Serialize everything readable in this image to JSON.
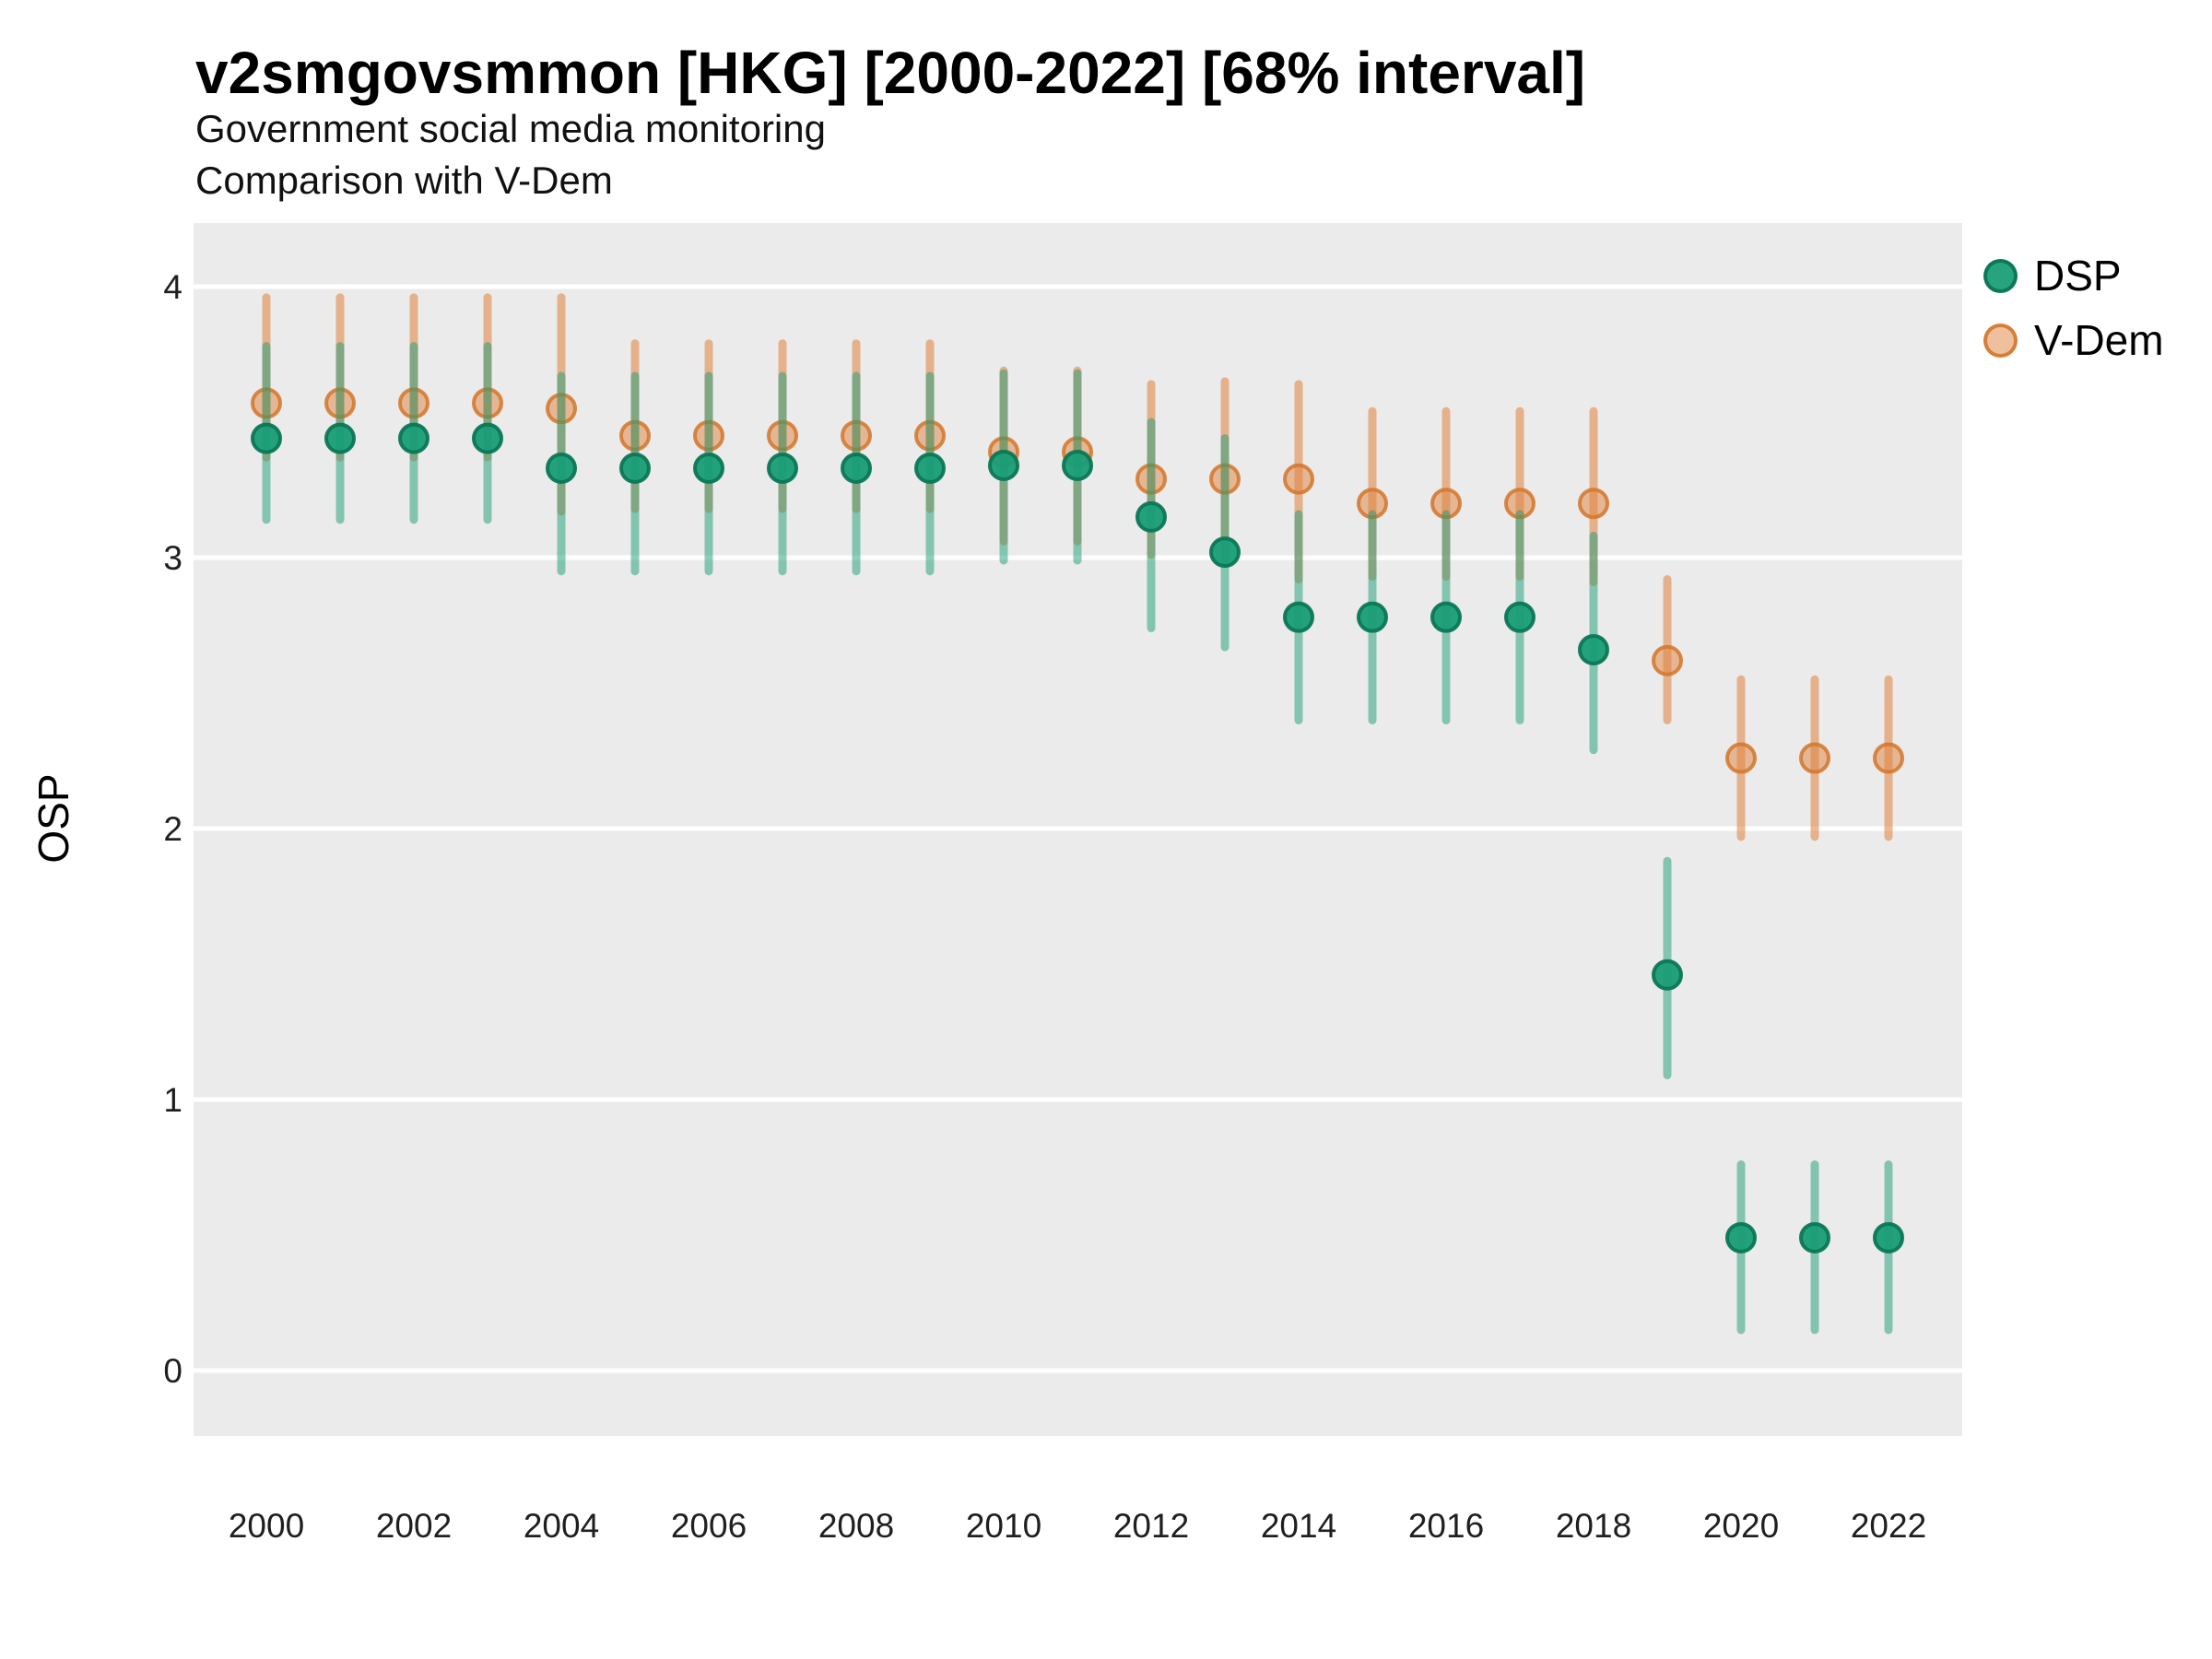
{
  "header": {
    "title": "v2smgovsmmon [HKG] [2000-2022] [68% interval]",
    "subtitle_line1": "Government social media monitoring",
    "subtitle_line2": "Comparison with V-Dem"
  },
  "legend": {
    "items": [
      {
        "label": "DSP",
        "color": "#1b9e77"
      },
      {
        "label": "V-Dem",
        "color": "#e0823c"
      }
    ]
  },
  "axes": {
    "y_label": "OSP",
    "y_tick_labels": [
      "0",
      "1",
      "2",
      "3",
      "4"
    ],
    "y_tick_values": [
      0,
      1,
      2,
      3,
      4
    ],
    "x_tick_labels": [
      "2000",
      "2002",
      "2004",
      "2006",
      "2008",
      "2010",
      "2012",
      "2014",
      "2016",
      "2018",
      "2020",
      "2022"
    ],
    "x_tick_values": [
      2000,
      2002,
      2004,
      2006,
      2008,
      2010,
      2012,
      2014,
      2016,
      2018,
      2020,
      2022
    ]
  },
  "chart_data": {
    "type": "pointrange",
    "title": "v2smgovsmmon [HKG] [2000-2022] [68% interval]",
    "subtitle": "Government social media monitoring\nComparison with V-Dem",
    "xlabel": "",
    "ylabel": "OSP",
    "interval": "68%",
    "ylim": [
      -0.25,
      4.25
    ],
    "grid": "white major gridlines at integers on grey panel",
    "legend_position": "right-top",
    "panel_color": "#ebebeb",
    "years": [
      2000,
      2001,
      2002,
      2003,
      2004,
      2005,
      2006,
      2007,
      2008,
      2009,
      2010,
      2011,
      2012,
      2013,
      2014,
      2015,
      2016,
      2017,
      2018,
      2019,
      2020,
      2021,
      2022
    ],
    "series": [
      {
        "name": "DSP",
        "color": "#1b9e77",
        "value": [
          3.44,
          3.44,
          3.44,
          3.44,
          3.33,
          3.33,
          3.33,
          3.33,
          3.33,
          3.33,
          3.34,
          3.34,
          3.15,
          3.02,
          2.78,
          2.78,
          2.78,
          2.78,
          2.66,
          1.46,
          0.49,
          0.49,
          0.49
        ],
        "low": [
          3.14,
          3.14,
          3.14,
          3.14,
          2.95,
          2.95,
          2.95,
          2.95,
          2.95,
          2.95,
          2.99,
          2.99,
          2.74,
          2.67,
          2.4,
          2.4,
          2.4,
          2.4,
          2.29,
          1.09,
          0.15,
          0.15,
          0.15
        ],
        "high": [
          3.78,
          3.78,
          3.78,
          3.78,
          3.67,
          3.67,
          3.67,
          3.67,
          3.67,
          3.67,
          3.68,
          3.68,
          3.5,
          3.44,
          3.16,
          3.16,
          3.16,
          3.16,
          3.08,
          1.88,
          0.76,
          0.76,
          0.76
        ]
      },
      {
        "name": "V-Dem",
        "color": "#e0823c",
        "value": [
          3.57,
          3.57,
          3.57,
          3.57,
          3.55,
          3.45,
          3.45,
          3.45,
          3.45,
          3.45,
          3.39,
          3.39,
          3.29,
          3.29,
          3.29,
          3.2,
          3.2,
          3.2,
          3.2,
          2.62,
          2.26,
          2.26,
          2.26
        ],
        "low": [
          3.37,
          3.37,
          3.37,
          3.37,
          3.17,
          3.18,
          3.18,
          3.18,
          3.18,
          3.18,
          3.06,
          3.06,
          3.01,
          2.98,
          2.92,
          2.93,
          2.93,
          2.93,
          2.91,
          2.4,
          1.97,
          1.97,
          1.97
        ],
        "high": [
          3.96,
          3.96,
          3.96,
          3.96,
          3.96,
          3.79,
          3.79,
          3.79,
          3.79,
          3.79,
          3.69,
          3.69,
          3.64,
          3.65,
          3.64,
          3.54,
          3.54,
          3.54,
          3.54,
          2.92,
          2.55,
          2.55,
          2.55
        ]
      }
    ]
  }
}
